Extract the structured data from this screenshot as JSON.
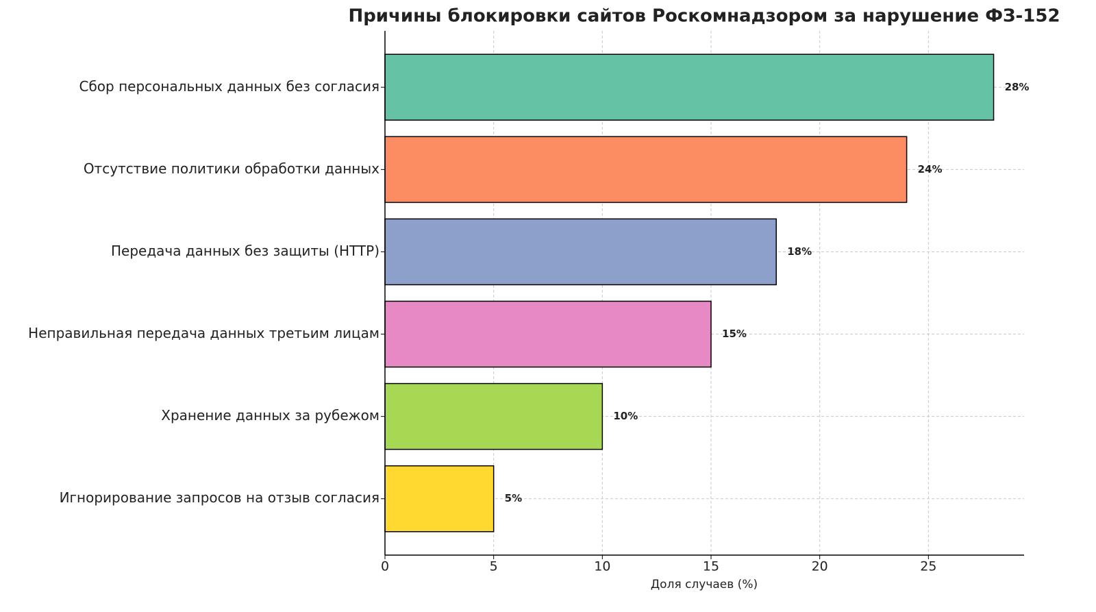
{
  "chart_data": {
    "type": "bar",
    "orientation": "horizontal",
    "title": "Причины блокировки сайтов Роскомнадзором за нарушение ФЗ-152",
    "x_label": "Доля случаев (%)",
    "categories": [
      "Сбор персональных данных без согласия",
      "Отсутствие политики обработки данных",
      "Передача данных без защиты (HTTP)",
      "Неправильная передача данных третьим лицам",
      "Хранение данных за рубежом",
      "Игнорирование запросов на отзыв согласия"
    ],
    "values": [
      28,
      24,
      18,
      15,
      10,
      5
    ],
    "value_labels": [
      "28%",
      "24%",
      "18%",
      "15%",
      "10%",
      "5%"
    ],
    "colors": [
      "#66c2a5",
      "#fc8d62",
      "#8da0cb",
      "#e78ac3",
      "#a6d854",
      "#ffd92f"
    ],
    "xlim": [
      0,
      29.4
    ],
    "xticks": [
      0,
      5,
      10,
      15,
      20,
      25
    ],
    "grid": true
  }
}
